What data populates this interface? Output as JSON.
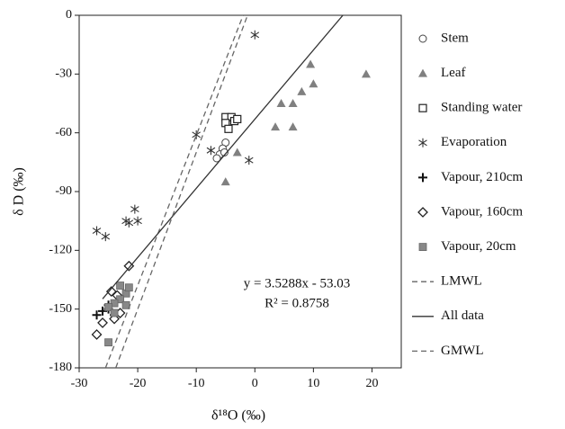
{
  "chart_data": {
    "type": "scatter",
    "x_label": "δ¹⁸O (‰)",
    "y_label": "δ D (‰)",
    "xlim": [
      -30,
      25
    ],
    "ylim": [
      -180,
      0
    ],
    "xticks": [
      -30,
      -20,
      -10,
      0,
      10,
      20
    ],
    "yticks": [
      0,
      -30,
      -60,
      -90,
      -120,
      -150,
      -180
    ],
    "annotations": [
      "y = 3.5288x - 53.03",
      "R² = 0.8758"
    ],
    "series": [
      {
        "name": "Stem",
        "marker": "circle",
        "color": "#444444",
        "x": [
          -5,
          -5.5,
          -6,
          -6.5,
          -5.2
        ],
        "values": [
          -65,
          -68,
          -71,
          -73,
          -70
        ]
      },
      {
        "name": "Leaf",
        "marker": "triangle",
        "color": "#808080",
        "x": [
          9.5,
          19,
          10,
          8,
          4.5,
          6.5,
          3.5,
          6.5,
          -3,
          -5
        ],
        "values": [
          -25,
          -30,
          -35,
          -39,
          -45,
          -45,
          -57,
          -57,
          -70,
          -85
        ]
      },
      {
        "name": "Standing water",
        "marker": "square",
        "color": "#222222",
        "x": [
          -5,
          -4,
          -3.5,
          -5,
          -4.5,
          -3
        ],
        "values": [
          -52,
          -52,
          -54,
          -55,
          -58,
          -53
        ]
      },
      {
        "name": "Evaporation",
        "marker": "asterisk",
        "color": "#333333",
        "x": [
          0,
          -10,
          -7.5,
          -1,
          -20.5,
          -20,
          -22,
          -21.5,
          -27,
          -25.5
        ],
        "values": [
          -10,
          -61,
          -69,
          -74,
          -99,
          -105,
          -105,
          -106,
          -110,
          -113
        ]
      },
      {
        "name": "Vapour, 210cm",
        "marker": "plus",
        "color": "#111111",
        "x": [
          -27,
          -26,
          -25,
          -24,
          -25
        ],
        "values": [
          -153,
          -151,
          -150,
          -153,
          -148
        ]
      },
      {
        "name": "Vapour, 160cm",
        "marker": "diamond",
        "color": "#222222",
        "x": [
          -21.5,
          -24.5,
          -23.5,
          -23,
          -24,
          -26,
          -27
        ],
        "values": [
          -128,
          -141,
          -143,
          -152,
          -155,
          -157,
          -163
        ]
      },
      {
        "name": "Vapour, 20cm",
        "marker": "filled-square",
        "color": "#888888",
        "x": [
          -23,
          -22,
          -23,
          -24,
          -22,
          -25,
          -24,
          -25,
          -21.5
        ],
        "values": [
          -138,
          -142,
          -145,
          -147,
          -148,
          -149,
          -152,
          -167,
          -139
        ]
      },
      {
        "name": "LMWL",
        "marker": "dash",
        "color": "#666666",
        "x": [
          -25.5,
          -2
        ],
        "values": [
          -180,
          0
        ]
      },
      {
        "name": "All data",
        "marker": "solid",
        "color": "#333333",
        "x": [
          -26,
          15.03
        ],
        "values": [
          -144.8,
          0
        ]
      },
      {
        "name": "GMWL",
        "marker": "dash",
        "color": "#666666",
        "x": [
          -23.75,
          -1.25
        ],
        "values": [
          -180,
          0
        ]
      }
    ]
  }
}
